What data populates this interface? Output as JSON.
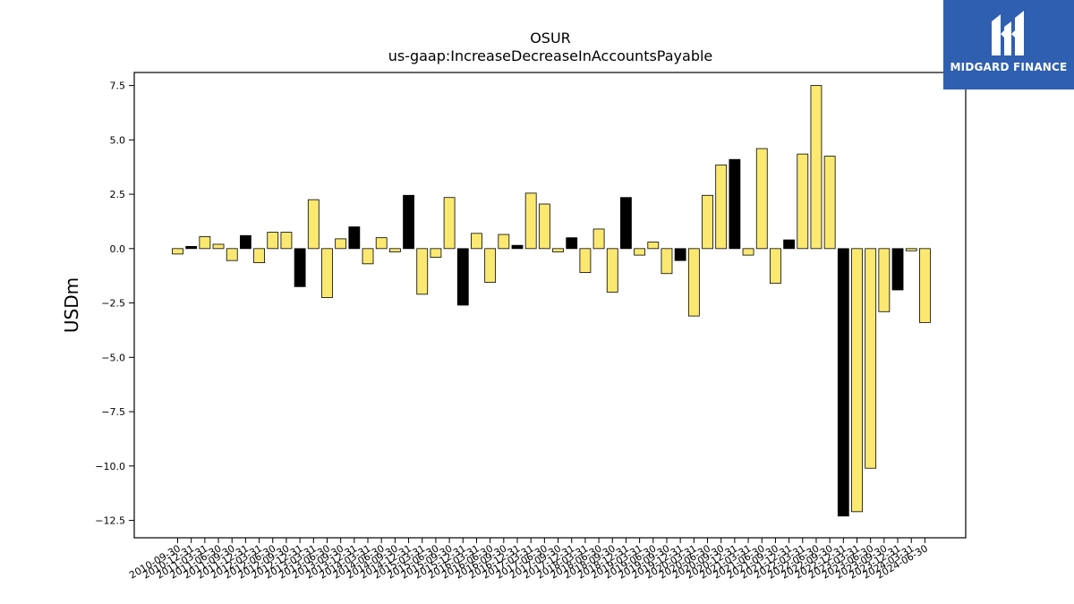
{
  "chart_data": {
    "type": "bar",
    "title": "OSUR",
    "subtitle": "us-gaap:IncreaseDecreaseInAccountsPayable",
    "ylabel": "USDm",
    "xlabel": "",
    "ylim": [
      -13.3,
      8.1
    ],
    "yticks": [
      7.5,
      5.0,
      2.5,
      0.0,
      -2.5,
      -5.0,
      -7.5,
      -10.0,
      -12.5
    ],
    "ytick_labels": [
      "7.5",
      "5.0",
      "2.5",
      "0.0",
      "−2.5",
      "−5.0",
      "−7.5",
      "−10.0",
      "−12.5"
    ],
    "grid": false,
    "colors": {
      "regular": "#fbe871",
      "annual": "#000000",
      "edge": "#000000"
    },
    "categories": [
      "2010-09-30",
      "2010-12-31",
      "2011-03-31",
      "2011-06-30",
      "2011-09-30",
      "2011-12-31",
      "2012-03-31",
      "2012-06-30",
      "2012-09-30",
      "2012-12-31",
      "2013-03-31",
      "2013-06-30",
      "2013-09-30",
      "2013-12-31",
      "2014-03-31",
      "2014-06-30",
      "2014-09-30",
      "2014-12-31",
      "2015-03-31",
      "2015-06-30",
      "2015-09-30",
      "2015-12-31",
      "2016-03-31",
      "2016-06-30",
      "2016-09-30",
      "2016-12-31",
      "2017-03-31",
      "2017-06-30",
      "2017-09-30",
      "2017-12-31",
      "2018-03-31",
      "2018-06-30",
      "2018-09-30",
      "2018-12-31",
      "2019-03-31",
      "2019-06-30",
      "2019-09-30",
      "2019-12-31",
      "2020-03-31",
      "2020-06-30",
      "2020-09-30",
      "2020-12-31",
      "2021-03-31",
      "2021-06-30",
      "2021-09-30",
      "2021-12-31",
      "2022-03-31",
      "2022-06-30",
      "2022-09-30",
      "2022-12-31",
      "2023-03-31",
      "2023-06-30",
      "2023-09-30",
      "2023-12-31",
      "2024-03-31",
      "2024-06-30"
    ],
    "values": [
      -0.25,
      0.1,
      0.55,
      0.2,
      -0.55,
      0.6,
      -0.65,
      0.75,
      0.75,
      -1.75,
      2.25,
      -2.25,
      0.45,
      1.0,
      -0.7,
      0.5,
      -0.15,
      2.45,
      -2.1,
      -0.4,
      2.35,
      -2.6,
      0.7,
      -1.55,
      0.65,
      0.15,
      2.55,
      2.05,
      -0.15,
      0.5,
      -1.1,
      0.9,
      -2.0,
      2.35,
      -0.3,
      0.3,
      -1.15,
      -0.55,
      -3.1,
      2.45,
      3.85,
      4.1,
      -0.3,
      4.6,
      -1.6,
      0.4,
      4.35,
      7.5,
      4.25,
      -12.3,
      -12.1,
      -10.1,
      -2.9,
      -1.9,
      -0.1,
      -3.4
    ],
    "annual": [
      false,
      true,
      false,
      false,
      false,
      true,
      false,
      false,
      false,
      true,
      false,
      false,
      false,
      true,
      false,
      false,
      false,
      true,
      false,
      false,
      false,
      true,
      false,
      false,
      false,
      true,
      false,
      false,
      false,
      true,
      false,
      false,
      false,
      true,
      false,
      false,
      false,
      true,
      false,
      false,
      false,
      true,
      false,
      false,
      false,
      true,
      false,
      false,
      false,
      true,
      false,
      false,
      false,
      true,
      false,
      false
    ]
  },
  "logo": {
    "text": "MIDGARD FINANCE",
    "icon": "midgard-m-icon"
  }
}
